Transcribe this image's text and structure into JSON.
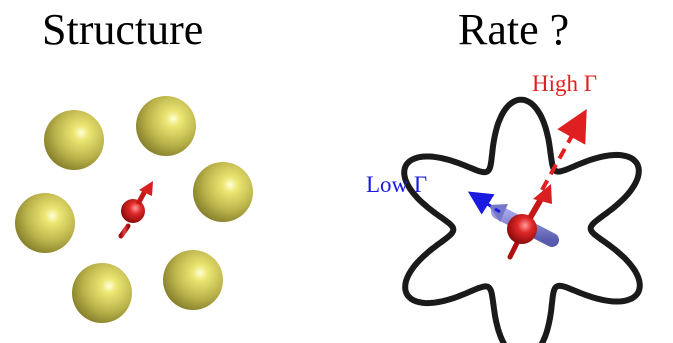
{
  "panels": {
    "left": {
      "title": "Structure"
    },
    "right": {
      "title": "Rate ?",
      "high_label": "High Γ",
      "low_label": "Low Γ"
    }
  },
  "colors": {
    "sphere": "#c9c25a",
    "atom": "#c41818",
    "high": "#e02020",
    "low": "#1a1ae0",
    "outline": "#1a1a1a"
  }
}
